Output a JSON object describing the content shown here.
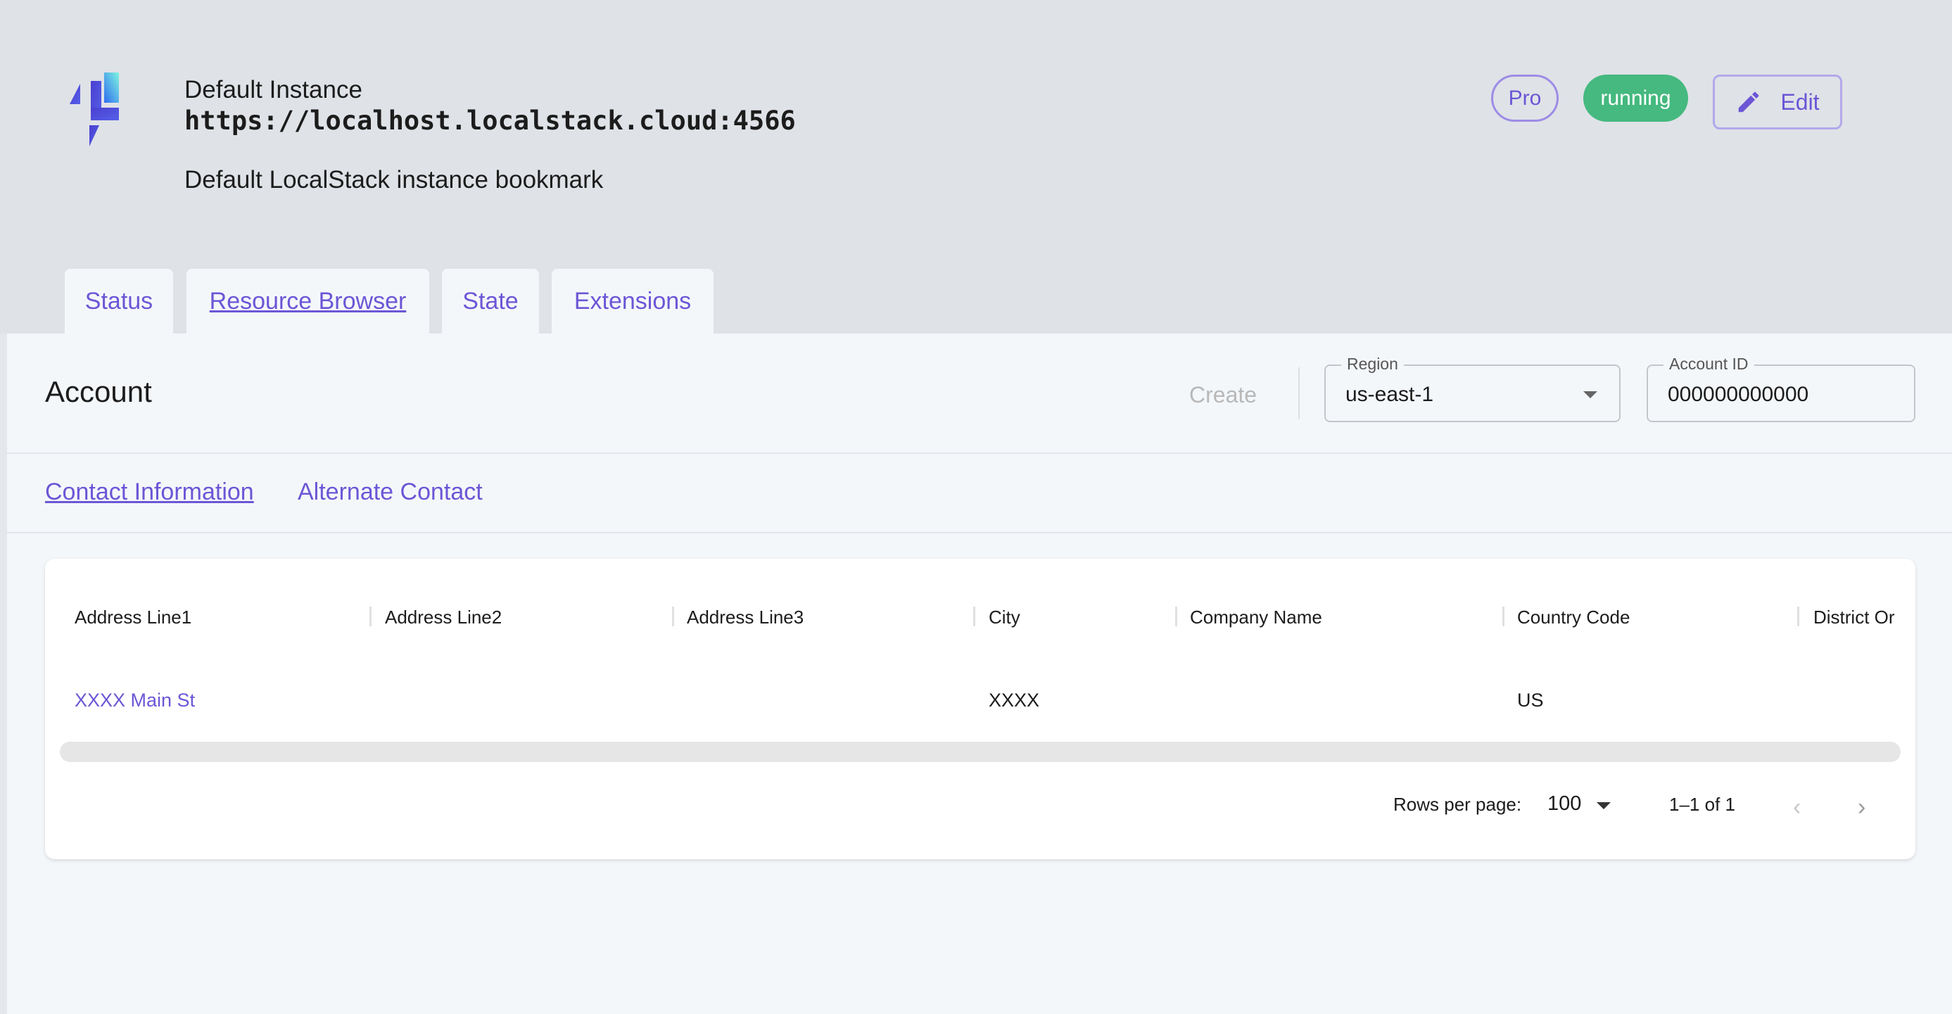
{
  "header": {
    "instance_name": "Default Instance",
    "url": "https://localhost.localstack.cloud:4566",
    "description": "Default LocalStack instance bookmark",
    "plan_badge": "Pro",
    "status_badge": "running",
    "edit_label": "Edit",
    "logo_icon": "localstack-logo"
  },
  "tabs": [
    {
      "label": "Status",
      "active": false
    },
    {
      "label": "Resource Browser",
      "active": true
    },
    {
      "label": "State",
      "active": false
    },
    {
      "label": "Extensions",
      "active": false
    }
  ],
  "toolbar": {
    "title": "Account",
    "create_label": "Create",
    "region": {
      "label": "Region",
      "value": "us-east-1"
    },
    "account_id": {
      "label": "Account ID",
      "value": "000000000000"
    }
  },
  "subtabs": [
    {
      "label": "Contact Information",
      "active": true
    },
    {
      "label": "Alternate Contact",
      "active": false
    }
  ],
  "table": {
    "columns": [
      "Address Line1",
      "Address Line2",
      "Address Line3",
      "City",
      "Company Name",
      "Country Code",
      "District Or"
    ],
    "rows": [
      [
        "XXXX Main St",
        "",
        "",
        "XXXX",
        "",
        "US",
        ""
      ]
    ]
  },
  "pagination": {
    "rows_per_page_label": "Rows per page:",
    "rows_per_page": "100",
    "range": "1–1 of 1"
  },
  "colors": {
    "accent": "#6c56d6",
    "running": "#45b97f",
    "header_bg": "#dfe2e7",
    "panel_bg": "#f4f7fa"
  }
}
